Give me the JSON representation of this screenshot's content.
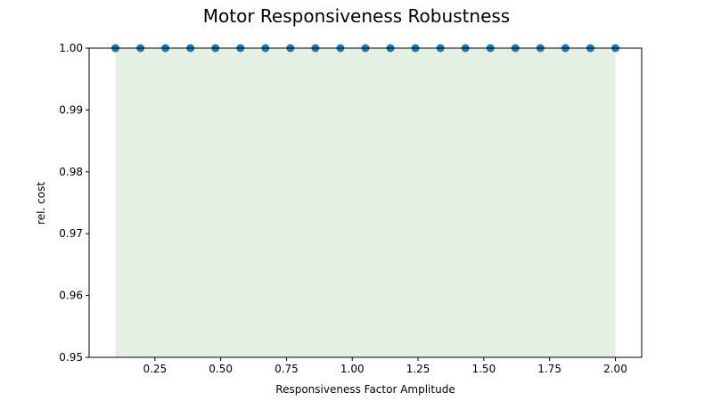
{
  "chart_data": {
    "type": "scatter",
    "title": "Motor Responsiveness Robustness",
    "xlabel": "Responsiveness Factor Amplitude",
    "ylabel": "rel. cost",
    "xlim": [
      0.0,
      2.1
    ],
    "ylim": [
      0.95,
      1.0
    ],
    "xticks": [
      "0.25",
      "0.50",
      "0.75",
      "1.00",
      "1.25",
      "1.50",
      "1.75",
      "2.00"
    ],
    "yticks": [
      "0.95",
      "0.96",
      "0.97",
      "0.98",
      "0.99",
      "1.00"
    ],
    "x": [
      0.1,
      0.195,
      0.29,
      0.385,
      0.48,
      0.575,
      0.67,
      0.765,
      0.86,
      0.955,
      1.05,
      1.145,
      1.24,
      1.335,
      1.43,
      1.525,
      1.62,
      1.715,
      1.81,
      1.905,
      2.0
    ],
    "y": [
      1.0,
      1.0,
      1.0,
      1.0,
      1.0,
      1.0,
      1.0,
      1.0,
      1.0,
      1.0,
      1.0,
      1.0,
      1.0,
      1.0,
      1.0,
      1.0,
      1.0,
      1.0,
      1.0,
      1.0,
      1.0
    ],
    "shaded_band": {
      "x": [
        0.1,
        2.0
      ],
      "y": [
        0.95,
        1.0
      ]
    },
    "grid": false,
    "colors": {
      "points": "#1f77b4",
      "band": "#e5f0e5"
    }
  }
}
